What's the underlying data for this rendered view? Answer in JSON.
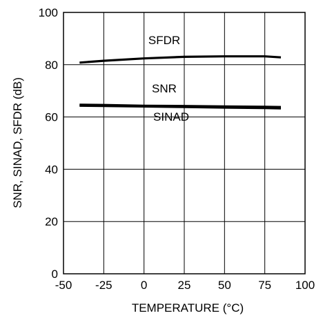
{
  "chart_data": {
    "type": "line",
    "title": "",
    "xlabel": "TEMPERATURE  (°C)",
    "ylabel": "SNR, SINAD, SFDR (dB)",
    "xlim": [
      -50,
      100
    ],
    "ylim": [
      0,
      100
    ],
    "xticks": [
      -50,
      -25,
      0,
      25,
      50,
      75,
      100
    ],
    "yticks": [
      0,
      20,
      40,
      60,
      80,
      100
    ],
    "grid": true,
    "series": [
      {
        "name": "SFDR",
        "x": [
          -40,
          -25,
          0,
          25,
          50,
          75,
          85
        ],
        "y": [
          80.8,
          81.5,
          82.4,
          83.0,
          83.2,
          83.2,
          82.8
        ]
      },
      {
        "name": "SNR",
        "x": [
          -40,
          -25,
          0,
          25,
          50,
          75,
          85
        ],
        "y": [
          64.7,
          64.6,
          64.3,
          64.2,
          64.0,
          63.9,
          63.8
        ]
      },
      {
        "name": "SINAD",
        "x": [
          -40,
          -25,
          0,
          25,
          50,
          75,
          85
        ],
        "y": [
          64.3,
          64.2,
          64.0,
          63.8,
          63.6,
          63.4,
          63.3
        ]
      }
    ],
    "series_labels": [
      "SFDR",
      "SNR",
      "SINAD"
    ]
  }
}
